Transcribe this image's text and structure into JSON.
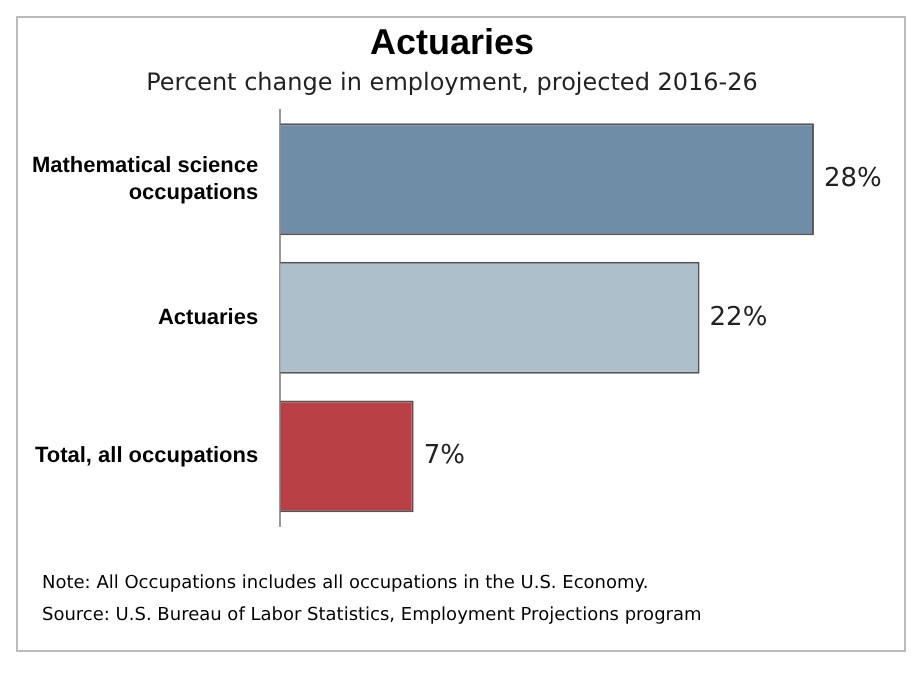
{
  "chart_data": {
    "type": "bar",
    "orientation": "horizontal",
    "title": "Actuaries",
    "subtitle": "Percent change in employment, projected 2016-26",
    "categories": [
      "Mathematical science occupations",
      "Actuaries",
      "Total, all occupations"
    ],
    "values": [
      28,
      22,
      7
    ],
    "colors": [
      "#6f8da7",
      "#aebfcc",
      "#b94044"
    ],
    "value_labels": [
      "28%",
      "22%",
      "7%"
    ],
    "annotations": [
      "Note: All Occupations includes all occupations in the U.S. Economy.",
      "Source: U.S. Bureau of Labor Statistics, Employment Projections program"
    ],
    "legend": false
  }
}
